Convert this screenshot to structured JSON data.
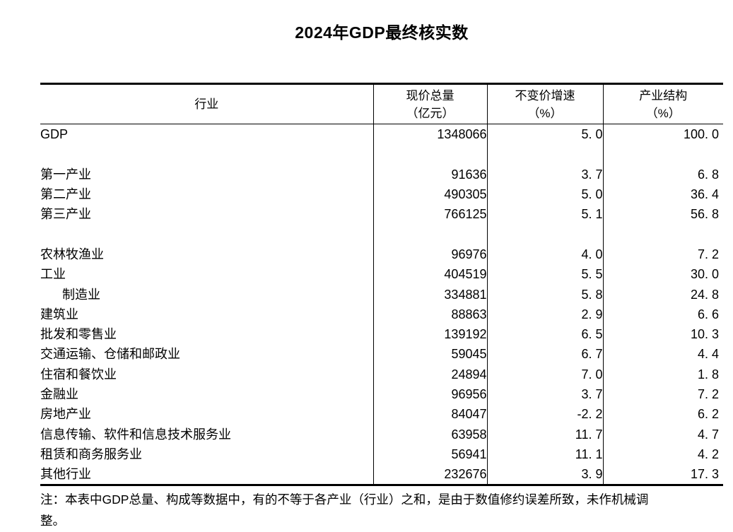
{
  "title": "2024年GDP最终核实数",
  "table": {
    "headers": {
      "industry": "行业",
      "current_price_line1": "现价总量",
      "current_price_line2": "（亿元）",
      "growth_line1": "不变价增速",
      "growth_line2": "（%）",
      "share_line1": "产业结构",
      "share_line2": "（%）"
    },
    "rows": [
      {
        "industry": "GDP",
        "current_price": "1348066",
        "growth": "5. 0",
        "share": "100. 0",
        "indent": false,
        "blank": false
      },
      {
        "industry": "",
        "current_price": "",
        "growth": "",
        "share": "",
        "indent": false,
        "blank": true
      },
      {
        "industry": "第一产业",
        "current_price": "91636",
        "growth": "3. 7",
        "share": "6. 8",
        "indent": false,
        "blank": false
      },
      {
        "industry": "第二产业",
        "current_price": "490305",
        "growth": "5. 0",
        "share": "36. 4",
        "indent": false,
        "blank": false
      },
      {
        "industry": "第三产业",
        "current_price": "766125",
        "growth": "5. 1",
        "share": "56. 8",
        "indent": false,
        "blank": false
      },
      {
        "industry": "",
        "current_price": "",
        "growth": "",
        "share": "",
        "indent": false,
        "blank": true
      },
      {
        "industry": "农林牧渔业",
        "current_price": "96976",
        "growth": "4. 0",
        "share": "7. 2",
        "indent": false,
        "blank": false
      },
      {
        "industry": "工业",
        "current_price": "404519",
        "growth": "5. 5",
        "share": "30. 0",
        "indent": false,
        "blank": false
      },
      {
        "industry": "制造业",
        "current_price": "334881",
        "growth": "5. 8",
        "share": "24. 8",
        "indent": true,
        "blank": false
      },
      {
        "industry": "建筑业",
        "current_price": "88863",
        "growth": "2. 9",
        "share": "6. 6",
        "indent": false,
        "blank": false
      },
      {
        "industry": "批发和零售业",
        "current_price": "139192",
        "growth": "6. 5",
        "share": "10. 3",
        "indent": false,
        "blank": false
      },
      {
        "industry": "交通运输、仓储和邮政业",
        "current_price": "59045",
        "growth": "6. 7",
        "share": "4. 4",
        "indent": false,
        "blank": false
      },
      {
        "industry": "住宿和餐饮业",
        "current_price": "24894",
        "growth": "7. 0",
        "share": "1. 8",
        "indent": false,
        "blank": false
      },
      {
        "industry": "金融业",
        "current_price": "96956",
        "growth": "3. 7",
        "share": "7. 2",
        "indent": false,
        "blank": false
      },
      {
        "industry": "房地产业",
        "current_price": "84047",
        "growth": "-2. 2",
        "share": "6. 2",
        "indent": false,
        "blank": false
      },
      {
        "industry": "信息传输、软件和信息技术服务业",
        "current_price": "63958",
        "growth": "11. 7",
        "share": "4. 7",
        "indent": false,
        "blank": false
      },
      {
        "industry": "租赁和商务服务业",
        "current_price": "56941",
        "growth": "11. 1",
        "share": "4. 2",
        "indent": false,
        "blank": false
      },
      {
        "industry": "其他行业",
        "current_price": "232676",
        "growth": "3. 9",
        "share": "17. 3",
        "indent": false,
        "blank": false
      }
    ]
  },
  "note": {
    "line1": "注：本表中GDP总量、构成等数据中，有的不等于各产业（行业）之和，是由于数值修约误差所致，未作机械调",
    "line2": "整。"
  },
  "colors": {
    "text": "#000000",
    "border": "#000000",
    "background": "#ffffff"
  }
}
